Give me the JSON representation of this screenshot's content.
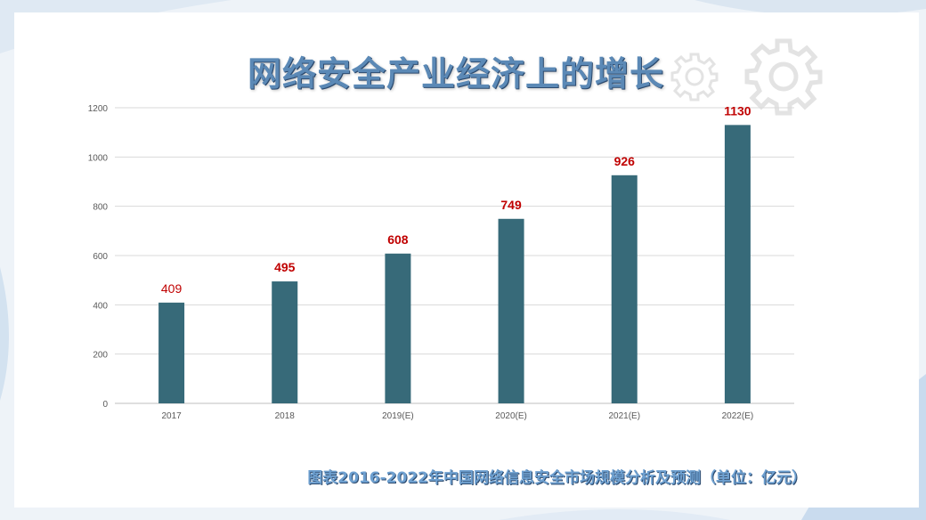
{
  "page": {
    "title": "网络安全产业经济上的增长",
    "caption": "图表2016-2022年中国网络信息安全市场规模分析及预测（单位：亿元）"
  },
  "colors": {
    "bar": "#376a79",
    "value_label": "#c00000",
    "title": "#5b89b6",
    "caption": "#6ea0d0",
    "axis_text": "#595959",
    "grid": "#d9d9d9"
  },
  "chart_data": {
    "type": "bar",
    "title": "",
    "xlabel": "",
    "ylabel": "",
    "categories": [
      "2017",
      "2018",
      "2019(E)",
      "2020(E)",
      "2021(E)",
      "2022(E)"
    ],
    "values": [
      409,
      495,
      608,
      749,
      926,
      1130
    ],
    "value_labels": [
      "409",
      "495",
      "608",
      "749",
      "926",
      "1130"
    ],
    "ylim": [
      0,
      1200
    ],
    "yticks": [
      "0",
      "200",
      "400",
      "600",
      "800",
      "1000",
      "1200"
    ],
    "grid": true,
    "legend": "none"
  }
}
